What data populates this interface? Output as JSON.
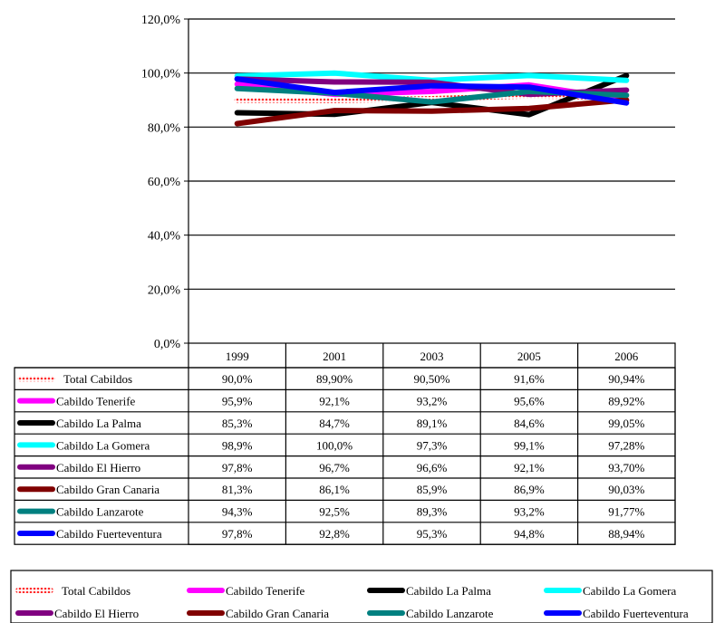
{
  "chart_data": {
    "type": "line",
    "title": "",
    "xlabel": "",
    "ylabel": "",
    "ylim": [
      0,
      120
    ],
    "y_ticks": [
      "0,0%",
      "20,0%",
      "40,0%",
      "60,0%",
      "80,0%",
      "100,0%",
      "120,0%"
    ],
    "grid": true,
    "legend": "bottom",
    "categories": [
      "1999",
      "2001",
      "2003",
      "2005",
      "2006"
    ],
    "series": [
      {
        "name": "Total  Cabildos",
        "color": "#ff2a2a",
        "pattern": "dotted",
        "values": [
          90.0,
          89.9,
          90.5,
          91.6,
          90.94
        ],
        "labels": [
          "90,0%",
          "89,90%",
          "90,50%",
          "91,6%",
          "90,94%"
        ]
      },
      {
        "name": "Cabildo Tenerife",
        "color": "#ff00ff",
        "values": [
          95.9,
          92.1,
          93.2,
          95.6,
          89.92
        ],
        "labels": [
          "95,9%",
          "92,1%",
          "93,2%",
          "95,6%",
          "89,92%"
        ]
      },
      {
        "name": "Cabildo  La Palma",
        "color": "#000000",
        "values": [
          85.3,
          84.7,
          89.1,
          84.6,
          99.05
        ],
        "labels": [
          "85,3%",
          "84,7%",
          "89,1%",
          "84,6%",
          "99,05%"
        ]
      },
      {
        "name": "Cabildo La Gomera",
        "color": "#00ffff",
        "values": [
          98.9,
          100.0,
          97.3,
          99.1,
          97.28
        ],
        "labels": [
          "98,9%",
          "100,0%",
          "97,3%",
          "99,1%",
          "97,28%"
        ]
      },
      {
        "name": "Cabildo El Hierro",
        "color": "#800080",
        "values": [
          97.8,
          96.7,
          96.6,
          92.1,
          93.7
        ],
        "labels": [
          "97,8%",
          "96,7%",
          "96,6%",
          "92,1%",
          "93,70%"
        ]
      },
      {
        "name": "Cabildo Gran Canaria",
        "color": "#800000",
        "values": [
          81.3,
          86.1,
          85.9,
          86.9,
          90.03
        ],
        "labels": [
          "81,3%",
          "86,1%",
          "85,9%",
          "86,9%",
          "90,03%"
        ]
      },
      {
        "name": "Cabildo Lanzarote",
        "color": "#008080",
        "values": [
          94.3,
          92.5,
          89.3,
          93.2,
          91.77
        ],
        "labels": [
          "94,3%",
          "92,5%",
          "89,3%",
          "93,2%",
          "91,77%"
        ]
      },
      {
        "name": "Cabildo Fuerteventura",
        "color": "#0000ff",
        "values": [
          97.8,
          92.8,
          95.3,
          94.8,
          88.94
        ],
        "labels": [
          "97,8%",
          "92,8%",
          "95,3%",
          "94,8%",
          "88,94%"
        ]
      }
    ]
  }
}
